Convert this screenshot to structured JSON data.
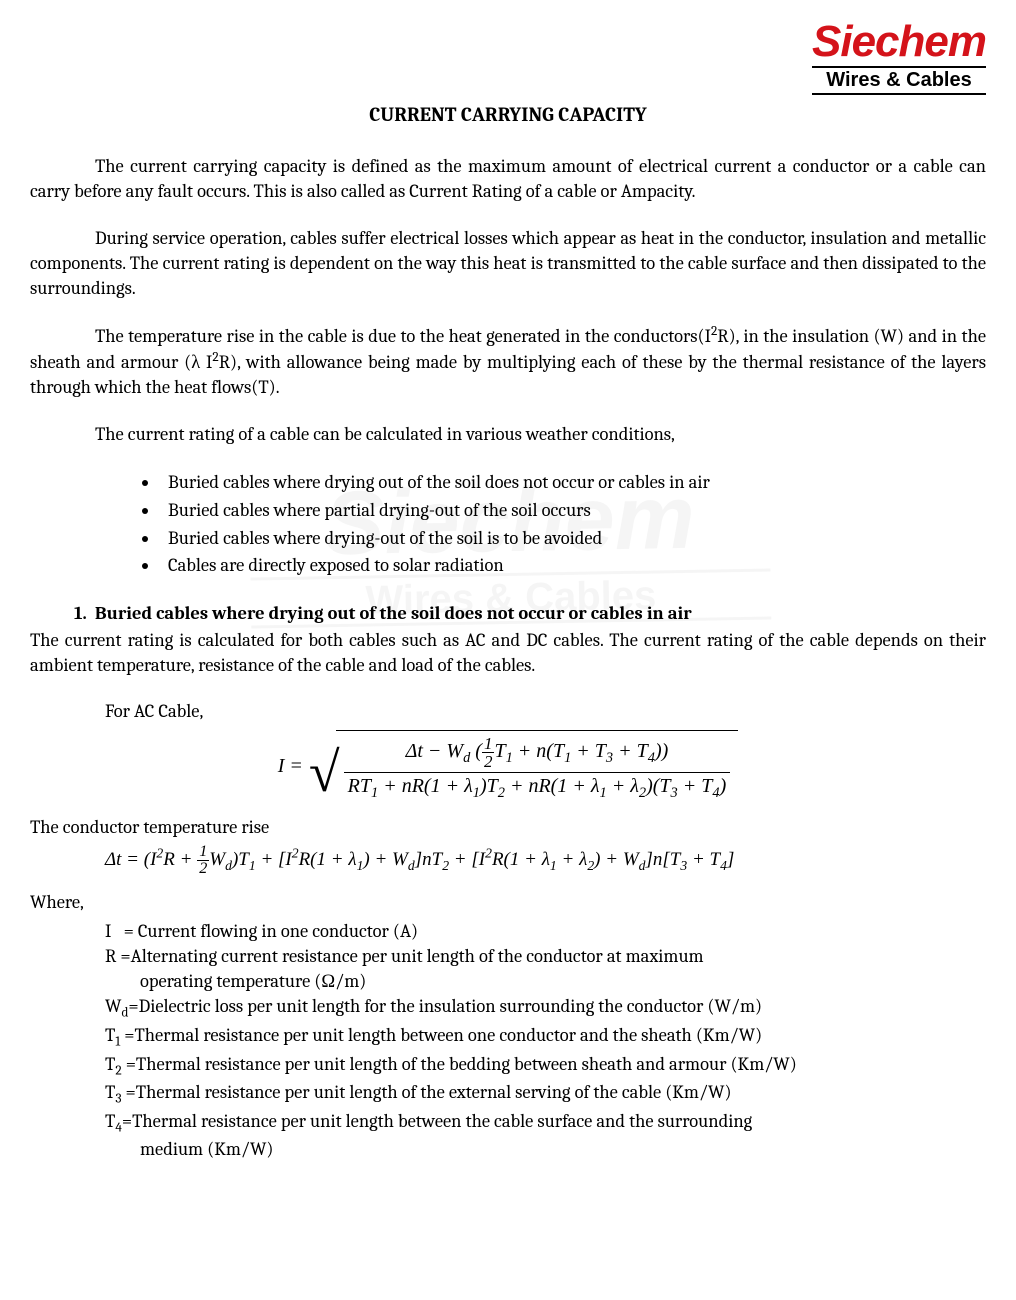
{
  "logo": {
    "main": "Siechem",
    "sub": "Wires & Cables"
  },
  "title": "CURRENT CARRYING CAPACITY",
  "p1": "The current carrying capacity is defined as the maximum amount of electrical current a conductor or a cable can carry before any fault occurs. This is also called as Current Rating of a cable or Ampacity.",
  "p2": "During service operation, cables suffer electrical losses which appear as heat in the conductor, insulation and metallic components. The current rating is dependent on the way this heat is transmitted to the cable surface and then dissipated to the surroundings.",
  "p3a": "The temperature rise in the cable is due to the heat generated in the conductors(I",
  "p3b": "R), in the insulation (W) and in the sheath and armour (λ I",
  "p3c": "R), with allowance being made by multiplying each of these by the thermal resistance of the layers through which the heat flows(T).",
  "p4": "The current rating of a cable can be calculated in various weather conditions,",
  "bullets": [
    "Buried cables where drying out of the soil does not occur or cables in air",
    "Buried cables where partial drying-out of the soil occurs",
    "Buried cables where drying-out of the soil is to be avoided",
    "Cables are directly exposed to solar radiation"
  ],
  "section1": {
    "num": "1.",
    "head": "Buried cables where drying out of the soil does not occur or cables in air",
    "body": "The current rating is calculated for both cables such as AC and DC cables. The current rating of the cable depends on their ambient temperature, resistance of the cable and load of the cables."
  },
  "forAC": "For AC Cable,",
  "formula1": {
    "lhs": "I =",
    "num": "Δt − W_d ( ½ T₁ + n(T₁ + T₃ + T₄) )",
    "den": "RT₁ + nR(1 + λ₁)T₂ + nR(1 + λ₁ + λ₂)(T₃ + T₄)"
  },
  "condHead": "The conductor temperature rise",
  "formula2": "Δt = (I²R + ½ W_d)T₁ + [I²R(1 + λ₁) + W_d] nT₂ + [I²R(1 + λ₁ + λ₂) + W_d] n[T₃ + T₄]",
  "where": "Where,",
  "defs": {
    "I": "= Current flowing in one conductor (A)",
    "R": "=Alternating current resistance per unit length of the conductor at maximum",
    "Rcont": "operating temperature (Ω/m)",
    "Wd": "=Dielectric loss per unit length for the insulation surrounding the conductor (W/m)",
    "T1": "=Thermal resistance per unit length between one conductor and the sheath (Km/W)",
    "T2": "=Thermal resistance per unit length of the bedding between sheath and armour (Km/W)",
    "T3": "=Thermal resistance per unit length of the external serving of the cable (Km/W)",
    "T4": "=Thermal resistance per unit length between the cable surface and the surrounding",
    "T4cont": "medium (Km/W)"
  }
}
